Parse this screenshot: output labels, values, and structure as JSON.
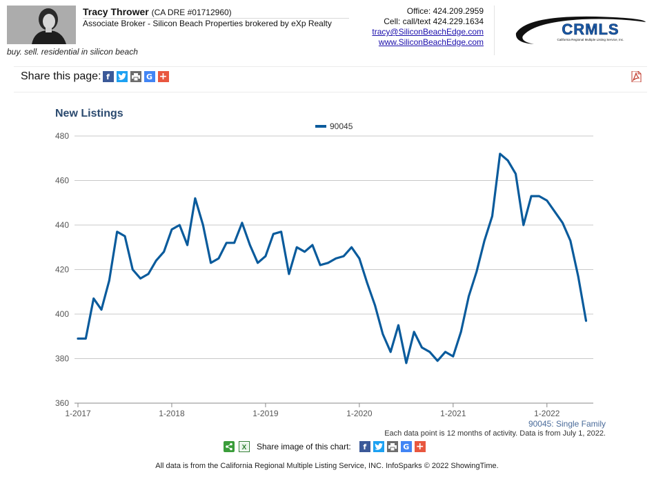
{
  "agent": {
    "name": "Tracy Thrower",
    "license": "(CA DRE #01712960)",
    "title": "Associate Broker - Silicon Beach Properties brokered by eXp Realty",
    "tagline": "buy. sell. residential in silicon beach"
  },
  "contact": {
    "office": "Office: 424.209.2959",
    "cell": "Cell: call/text 424.229.1634",
    "email": "tracy@SiliconBeachEdge.com",
    "website": "www.SiliconBeachEdge.com"
  },
  "logo": {
    "text": "CRMLS",
    "subtitle": "California Regional Multiple Listing Service, Inc."
  },
  "share": {
    "label": "Share this page:",
    "icons": [
      "facebook-icon",
      "twitter-icon",
      "print-icon",
      "google-icon",
      "plus-icon"
    ]
  },
  "chart_data": {
    "type": "line",
    "title": "New Listings",
    "xlabel": "",
    "ylabel": "",
    "ylim": [
      360,
      480
    ],
    "yticks": [
      360,
      380,
      400,
      420,
      440,
      460,
      480
    ],
    "xticks": [
      "1-2017",
      "1-2018",
      "1-2019",
      "1-2020",
      "1-2021",
      "1-2022"
    ],
    "grid": true,
    "legend_position": "top",
    "series": [
      {
        "name": "90045",
        "color": "#0a5b9c",
        "x": [
          "1-2017",
          "2-2017",
          "3-2017",
          "4-2017",
          "5-2017",
          "6-2017",
          "7-2017",
          "8-2017",
          "9-2017",
          "10-2017",
          "11-2017",
          "12-2017",
          "1-2018",
          "2-2018",
          "3-2018",
          "4-2018",
          "5-2018",
          "6-2018",
          "7-2018",
          "8-2018",
          "9-2018",
          "10-2018",
          "11-2018",
          "12-2018",
          "1-2019",
          "2-2019",
          "3-2019",
          "4-2019",
          "5-2019",
          "6-2019",
          "7-2019",
          "8-2019",
          "9-2019",
          "10-2019",
          "11-2019",
          "12-2019",
          "1-2020",
          "2-2020",
          "3-2020",
          "4-2020",
          "5-2020",
          "6-2020",
          "7-2020",
          "8-2020",
          "9-2020",
          "10-2020",
          "11-2020",
          "12-2020",
          "1-2021",
          "2-2021",
          "3-2021",
          "4-2021",
          "5-2021",
          "6-2021",
          "7-2021",
          "8-2021",
          "9-2021",
          "10-2021",
          "11-2021",
          "12-2021",
          "1-2022",
          "2-2022",
          "3-2022",
          "4-2022",
          "5-2022",
          "6-2022"
        ],
        "values": [
          389,
          389,
          407,
          402,
          415,
          437,
          435,
          420,
          416,
          418,
          424,
          428,
          438,
          440,
          431,
          452,
          440,
          423,
          425,
          432,
          432,
          441,
          431,
          423,
          426,
          436,
          437,
          418,
          430,
          428,
          431,
          422,
          423,
          425,
          426,
          430,
          425,
          414,
          404,
          391,
          383,
          395,
          378,
          392,
          385,
          383,
          379,
          383,
          381,
          392,
          408,
          419,
          433,
          444,
          472,
          469,
          463,
          440,
          453,
          453,
          451,
          446,
          441,
          433,
          417,
          397
        ]
      }
    ]
  },
  "chart_footer": {
    "series_note": "90045: Single Family",
    "data_note": "Each data point is 12 months of activity. Data is from July 1, 2022."
  },
  "share_chart": {
    "label": "Share image of this chart:"
  },
  "copyright": "All data is from the California Regional Multiple Listing Service, INC. InfoSparks © 2022 ShowingTime."
}
